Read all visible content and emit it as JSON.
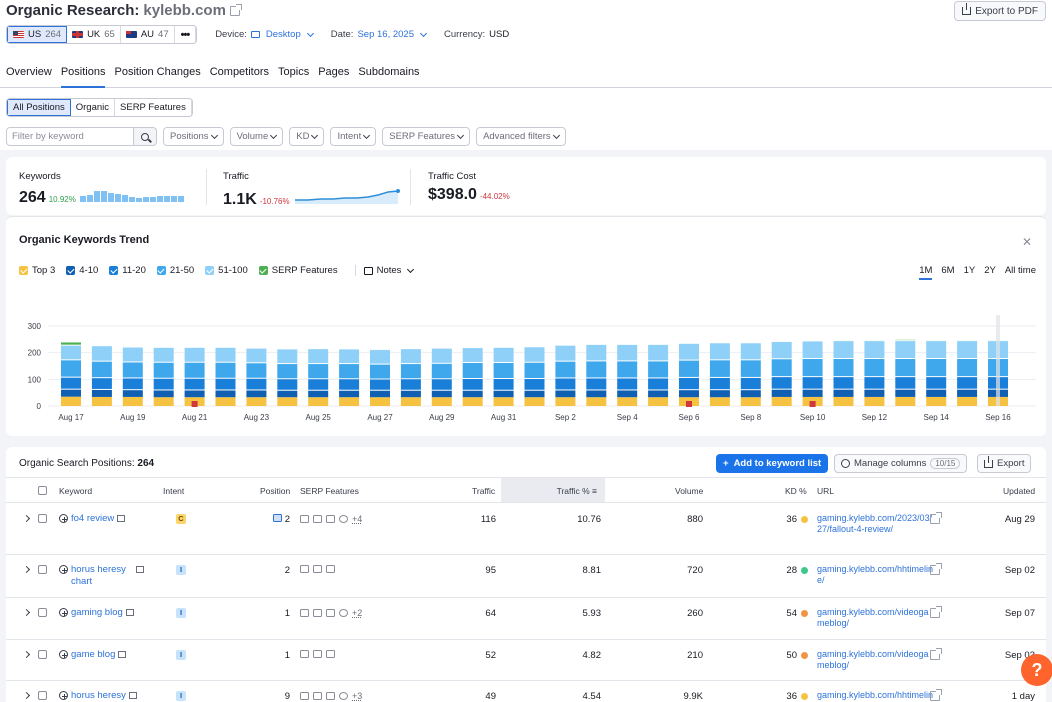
{
  "header": {
    "title": "Organic Research:",
    "domain": "kylebb.com",
    "export_pdf": "Export to PDF"
  },
  "databases": [
    {
      "code": "US",
      "count": "264",
      "selected": true
    },
    {
      "code": "UK",
      "count": "65",
      "selected": false
    },
    {
      "code": "AU",
      "count": "47",
      "selected": false
    }
  ],
  "meta": {
    "device_label": "Device:",
    "device_value": "Desktop",
    "date_label": "Date:",
    "date_value": "Sep 16, 2025",
    "currency_label": "Currency:",
    "currency_value": "USD"
  },
  "tabs": [
    "Overview",
    "Positions",
    "Position Changes",
    "Competitors",
    "Topics",
    "Pages",
    "Subdomains"
  ],
  "active_tab": 1,
  "subtabs": [
    "All Positions",
    "Organic",
    "SERP Features"
  ],
  "filters": {
    "placeholder": "Filter by keyword",
    "dropdowns": [
      "Positions",
      "Volume",
      "KD",
      "Intent",
      "SERP Features",
      "Advanced filters"
    ]
  },
  "summary": {
    "keywords": {
      "label": "Keywords",
      "value": "264",
      "change": "10.92%",
      "change_color": "#2d9d4a"
    },
    "traffic": {
      "label": "Traffic",
      "value": "1.1K",
      "change": "-10.76%",
      "change_color": "#d1373f"
    },
    "cost": {
      "label": "Traffic Cost",
      "value": "$398.0",
      "change": "-44.02%",
      "change_color": "#d1373f"
    }
  },
  "trend": {
    "title": "Organic Keywords Trend",
    "legend": [
      {
        "label": "Top 3",
        "color": "#f5c242"
      },
      {
        "label": "4-10",
        "color": "#0f5fb3"
      },
      {
        "label": "11-20",
        "color": "#1a7fd9"
      },
      {
        "label": "21-50",
        "color": "#3fa8ec"
      },
      {
        "label": "51-100",
        "color": "#8fd0f8"
      },
      {
        "label": "SERP Features",
        "color": "#4caf50"
      }
    ],
    "notes": "Notes",
    "ranges": [
      "1M",
      "6M",
      "1Y",
      "2Y",
      "All time"
    ],
    "active_range": "1M"
  },
  "chart_data": {
    "type": "bar",
    "stacked": true,
    "ylim": [
      0,
      300
    ],
    "yticks": [
      300,
      200,
      100,
      0
    ],
    "categories": [
      "Aug 17",
      "Aug 18",
      "Aug 19",
      "Aug 20",
      "Aug 21",
      "Aug 22",
      "Aug 23",
      "Aug 24",
      "Aug 25",
      "Aug 26",
      "Aug 27",
      "Aug 28",
      "Aug 29",
      "Aug 30",
      "Aug 31",
      "Sep 1",
      "Sep 2",
      "Sep 3",
      "Sep 4",
      "Sep 5",
      "Sep 6",
      "Sep 7",
      "Sep 8",
      "Sep 9",
      "Sep 10",
      "Sep 11",
      "Sep 12",
      "Sep 13",
      "Sep 14",
      "Sep 15",
      "Sep 16"
    ],
    "xtick_labels": [
      "Aug 17",
      "Aug 19",
      "Aug 21",
      "Aug 23",
      "Aug 25",
      "Aug 27",
      "Aug 29",
      "Aug 31",
      "Sep 2",
      "Sep 4",
      "Sep 6",
      "Sep 8",
      "Sep 10",
      "Sep 12",
      "Sep 14",
      "Sep 16"
    ],
    "series": [
      {
        "name": "Top 3",
        "color": "#f5c242",
        "values": [
          35,
          34,
          34,
          33,
          33,
          33,
          33,
          33,
          33,
          33,
          33,
          33,
          33,
          33,
          33,
          33,
          33,
          33,
          33,
          33,
          33,
          33,
          33,
          34,
          34,
          34,
          34,
          34,
          34,
          34,
          34
        ]
      },
      {
        "name": "4-10",
        "color": "#0f5fb3",
        "values": [
          30,
          30,
          29,
          29,
          29,
          29,
          29,
          28,
          28,
          28,
          28,
          28,
          28,
          28,
          28,
          28,
          29,
          29,
          29,
          29,
          30,
          30,
          30,
          31,
          31,
          31,
          31,
          31,
          31,
          31,
          31
        ]
      },
      {
        "name": "11-20",
        "color": "#1a7fd9",
        "values": [
          45,
          44,
          44,
          44,
          44,
          44,
          44,
          43,
          43,
          43,
          42,
          43,
          43,
          44,
          44,
          44,
          45,
          45,
          45,
          45,
          46,
          46,
          46,
          47,
          47,
          47,
          47,
          47,
          47,
          47,
          47
        ]
      },
      {
        "name": "21-50",
        "color": "#3fa8ec",
        "values": [
          65,
          62,
          60,
          60,
          60,
          60,
          58,
          57,
          57,
          57,
          56,
          57,
          58,
          60,
          60,
          61,
          63,
          64,
          64,
          64,
          65,
          66,
          66,
          67,
          68,
          68,
          68,
          68,
          68,
          68,
          68
        ]
      },
      {
        "name": "51-100",
        "color": "#8fd0f8",
        "values": [
          55,
          58,
          56,
          56,
          56,
          56,
          55,
          55,
          56,
          55,
          55,
          56,
          57,
          56,
          57,
          58,
          60,
          62,
          62,
          62,
          63,
          64,
          64,
          65,
          66,
          67,
          67,
          67,
          67,
          67,
          67
        ]
      },
      {
        "name": "SERP Features",
        "color": "#4caf50",
        "values": [
          12,
          3,
          0,
          0,
          0,
          0,
          0,
          0,
          2,
          0,
          0,
          0,
          0,
          0,
          0,
          0,
          0,
          0,
          0,
          0,
          0,
          0,
          0,
          0,
          3,
          4,
          4,
          5,
          4,
          4,
          4
        ]
      }
    ],
    "notes_on": [
      "Aug 21",
      "Sep 6",
      "Sep 10"
    ],
    "note_color": "#d1373f"
  },
  "table": {
    "title": "Organic Search Positions:",
    "count": "264",
    "add_btn": "Add to keyword list",
    "manage_btn": "Manage columns",
    "manage_badge": "10/15",
    "export_btn": "Export",
    "columns": {
      "keyword": "Keyword",
      "intent": "Intent",
      "position": "Position",
      "serp": "SERP Features",
      "traffic": "Traffic",
      "traffic_pct": "Traffic %",
      "volume": "Volume",
      "kd": "KD %",
      "url": "URL",
      "updated": "Updated"
    },
    "rows": [
      {
        "keyword": "fo4 review",
        "intent": "C",
        "position": "2",
        "serp_more": "+4",
        "traffic": "116",
        "traffic_pct": "10.76",
        "volume": "880",
        "kd": "36",
        "kd_color": "#f5c242",
        "url": "gaming.kylebb.com/2023/03/27/fallout-4-review/",
        "updated": "Aug 29"
      },
      {
        "keyword": "horus heresy chart",
        "intent": "I",
        "position": "2",
        "serp_more": "",
        "traffic": "95",
        "traffic_pct": "8.81",
        "volume": "720",
        "kd": "28",
        "kd_color": "#3cc98a",
        "url": "gaming.kylebb.com/hhtimeline/",
        "updated": "Sep 02"
      },
      {
        "keyword": "gaming blog",
        "intent": "I",
        "position": "1",
        "serp_more": "+2",
        "traffic": "64",
        "traffic_pct": "5.93",
        "volume": "260",
        "kd": "54",
        "kd_color": "#f19544",
        "url": "gaming.kylebb.com/videogameblog/",
        "updated": "Sep 07"
      },
      {
        "keyword": "game blog",
        "intent": "I",
        "position": "1",
        "serp_more": "",
        "traffic": "52",
        "traffic_pct": "4.82",
        "volume": "210",
        "kd": "50",
        "kd_color": "#f19544",
        "url": "gaming.kylebb.com/videogameblog/",
        "updated": "Sep 03"
      },
      {
        "keyword": "horus heresy",
        "intent": "I",
        "position": "9",
        "serp_more": "+3",
        "traffic": "49",
        "traffic_pct": "4.54",
        "volume": "9.9K",
        "kd": "36",
        "kd_color": "#f5c242",
        "url": "gaming.kylebb.com/hhtimeline/",
        "updated": "1 day"
      }
    ]
  },
  "help": "?"
}
